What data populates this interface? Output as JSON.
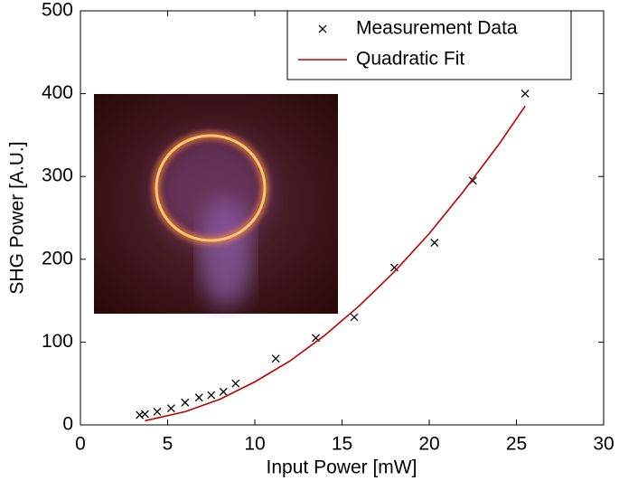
{
  "chart_data": {
    "type": "scatter",
    "xlabel": "Input Power [mW]",
    "ylabel": "SHG Power [A.U.]",
    "xlim": [
      0,
      30
    ],
    "xticks": [
      0,
      5,
      10,
      15,
      20,
      25,
      30
    ],
    "ylim": [
      0,
      500
    ],
    "yticks": [
      0,
      100,
      200,
      300,
      400,
      500
    ],
    "legend": "upper right",
    "grid": false,
    "series": [
      {
        "name": "Measurement Data",
        "color": "#000000",
        "mode": "markers",
        "x": [
          3.4,
          3.7,
          4.4,
          5.2,
          6,
          6.8,
          7.5,
          8.2,
          8.9,
          11.2,
          13.5,
          15.7,
          18,
          20.3,
          22.5,
          25.5
        ],
        "values": [
          12,
          13,
          16,
          20,
          27,
          33,
          36,
          40,
          50,
          80,
          105,
          130,
          190,
          220,
          295,
          400
        ]
      },
      {
        "name": "Quadratic Fit",
        "color": "#c00000",
        "mode": "line",
        "x": [
          3.7,
          6,
          8,
          10,
          12,
          14,
          16,
          18,
          20,
          22,
          24,
          25.5
        ],
        "values": [
          5,
          16,
          31,
          52,
          77,
          108,
          144,
          185,
          231,
          283,
          339,
          385
        ]
      }
    ]
  }
}
